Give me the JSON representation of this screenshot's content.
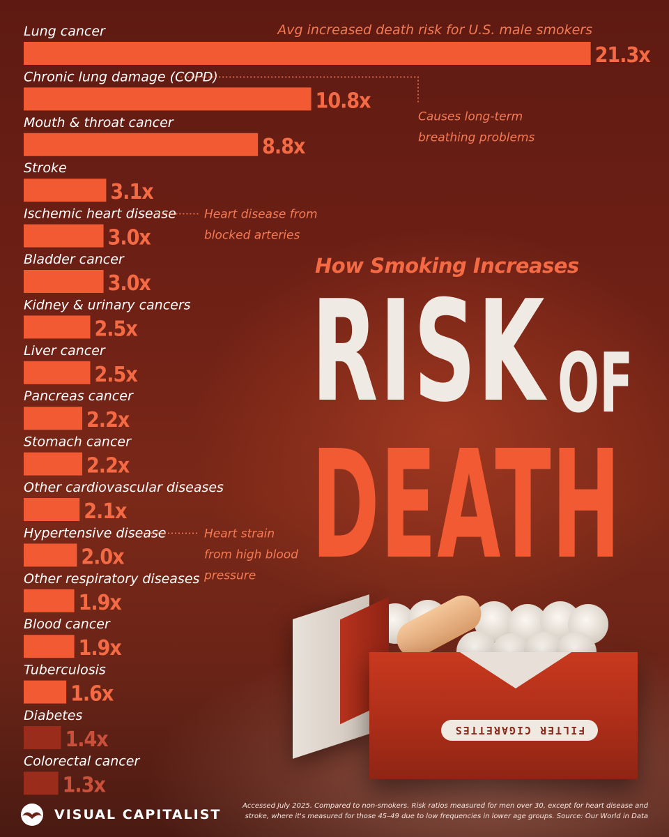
{
  "title": {
    "subtitle": "How Smoking Increases",
    "line1": "RISK",
    "line1b": "OF",
    "line2": "DEATH"
  },
  "chart_data": {
    "type": "bar",
    "orientation": "horizontal",
    "series_label": "Avg increased death risk for U.S. male smokers",
    "categories": [
      "Lung cancer",
      "Chronic lung damage (COPD)",
      "Mouth & throat cancer",
      "Stroke",
      "Ischemic heart disease",
      "Bladder cancer",
      "Kidney & urinary cancers",
      "Liver cancer",
      "Pancreas cancer",
      "Stomach cancer",
      "Other cardiovascular diseases",
      "Hypertensive disease",
      "Other respiratory diseases",
      "Blood cancer",
      "Tuberculosis",
      "Diabetes",
      "Colorectal cancer"
    ],
    "values": [
      21.3,
      10.8,
      8.8,
      3.1,
      3.0,
      3.0,
      2.5,
      2.5,
      2.2,
      2.2,
      2.1,
      2.0,
      1.9,
      1.9,
      1.6,
      1.4,
      1.3
    ],
    "value_labels": [
      "21.3x",
      "10.8x",
      "8.8x",
      "3.1x",
      "3.0x",
      "3.0x",
      "2.5x",
      "2.5x",
      "2.2x",
      "2.2x",
      "2.1x",
      "2.0x",
      "1.9x",
      "1.9x",
      "1.6x",
      "1.4x",
      "1.3x"
    ],
    "annotations": [
      {
        "category": "Chronic lung damage (COPD)",
        "text": [
          "Causes long-term",
          "breathing problems"
        ]
      },
      {
        "category": "Ischemic heart disease",
        "text": [
          "Heart disease from",
          "blocked arteries"
        ]
      },
      {
        "category": "Hypertensive disease",
        "text": [
          "Heart strain",
          "from high blood",
          "pressure"
        ]
      }
    ],
    "colors": {
      "bar_bright": "#f15a33",
      "bar_dark": "#9a2c1b",
      "value_bright": "#f36a45",
      "value_dark": "#c9503a"
    }
  },
  "pack": {
    "label": "FILTER CIGARETTES"
  },
  "footer": {
    "brand": "VISUAL CAPITALIST",
    "source": "Accessed July 2025. Compared to non-smokers. Risk ratios measured for men over 30, except for heart disease and stroke, where it's measured for those 45–49 due to low frequencies in lower age groups. Source: Our World in Data"
  }
}
